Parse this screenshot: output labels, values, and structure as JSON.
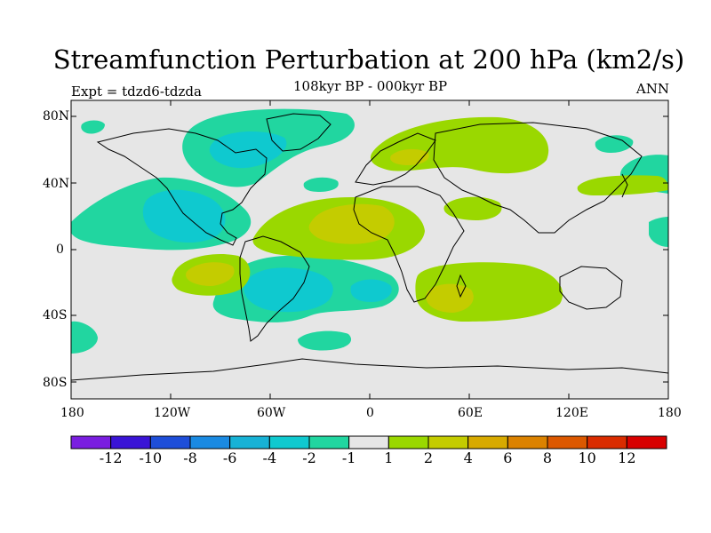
{
  "title": "Streamfunction Perturbation at 200 hPa (km2/s)",
  "subtitle": "108kyr BP - 000kyr BP",
  "experiment": "Expt = tdzd6-tdzda",
  "period": "ANN",
  "lat_labels": [
    "80N",
    "40N",
    "0",
    "40S",
    "80S"
  ],
  "lon_labels": [
    "180",
    "120W",
    "60W",
    "0",
    "60E",
    "120E",
    "180"
  ],
  "colorbar": {
    "colors": [
      "#7a1ee0",
      "#3a14d6",
      "#1e4ed9",
      "#1a8ae2",
      "#17b2d6",
      "#0fc9cf",
      "#21d6a0",
      "#e6e6e6",
      "#9ad800",
      "#c4cc00",
      "#d8aa00",
      "#db8200",
      "#dc5800",
      "#da2c00",
      "#d80000"
    ],
    "labels": [
      "-12",
      "-10",
      "-8",
      "-6",
      "-4",
      "-2",
      "-1",
      "1",
      "2",
      "4",
      "6",
      "8",
      "10",
      "12"
    ]
  },
  "colors": {
    "background_band": "#e6e6e6",
    "neg1": "#21d6a0",
    "neg2": "#0fc9cf",
    "pos1": "#9ad800",
    "pos2": "#c4cc00"
  }
}
